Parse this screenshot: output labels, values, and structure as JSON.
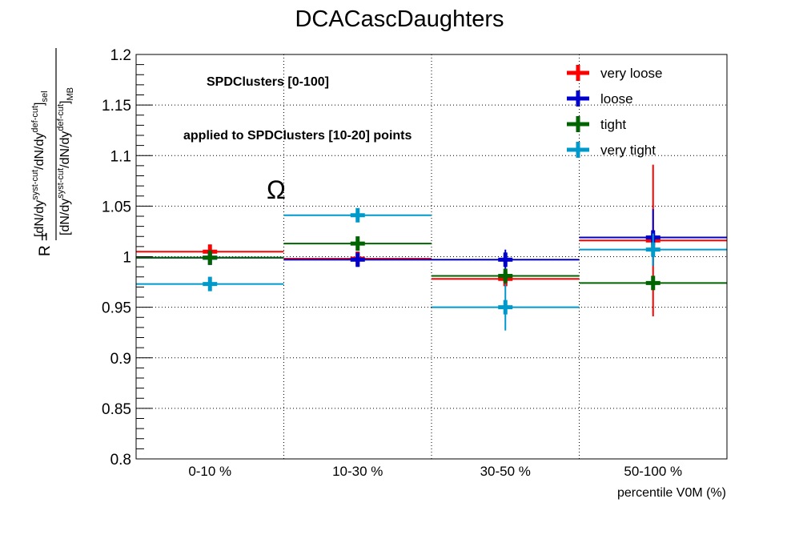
{
  "chart_data": {
    "type": "scatter",
    "title": "DCACascDaughters",
    "xlabel": "percentile V0M (%)",
    "ylabel": "R = [dN/dy^syst-cut/dN/dy^def-cut]_sel / [dN/dy^syst-cut/dN/dy^def-cut]_MB",
    "ylabel_parts": {
      "prefix": "R =",
      "bracket_open": "[",
      "bracket_close": "]",
      "dndy": "dN/dy",
      "syst": "syst-cut",
      "def": "def-cut",
      "slash": "/",
      "sel": "sel",
      "mb": "MB"
    },
    "categories": [
      "0-10 %",
      "10-30 %",
      "30-50 %",
      "50-100 %"
    ],
    "ylim": [
      0.8,
      1.2
    ],
    "yticks": [
      "0.8",
      "0.85",
      "0.9",
      "0.95",
      "1",
      "1.05",
      "1.1",
      "1.15",
      "1.2"
    ],
    "grid": true,
    "legend_position": "top-right",
    "annotations": [
      "SPDClusters [0-100]",
      "applied to SPDClusters [10-20] points",
      "Ω"
    ],
    "series": [
      {
        "name": "very loose",
        "color": "#ff0000",
        "values": [
          1.005,
          0.998,
          0.978,
          1.016
        ],
        "errors": [
          0.006,
          0.003,
          0.008,
          0.075
        ]
      },
      {
        "name": "loose",
        "color": "#0000cc",
        "values": [
          0.999,
          0.997,
          0.997,
          1.019
        ],
        "errors": [
          0.004,
          0.005,
          0.01,
          0.028
        ]
      },
      {
        "name": "tight",
        "color": "#006400",
        "values": [
          0.999,
          1.013,
          0.981,
          0.974
        ],
        "errors": [
          0.006,
          0.005,
          0.006,
          0.006
        ]
      },
      {
        "name": "very tight",
        "color": "#0099cc",
        "values": [
          0.973,
          1.041,
          0.95,
          1.007
        ],
        "errors": [
          0.006,
          0.005,
          0.023,
          0.016
        ]
      }
    ]
  }
}
